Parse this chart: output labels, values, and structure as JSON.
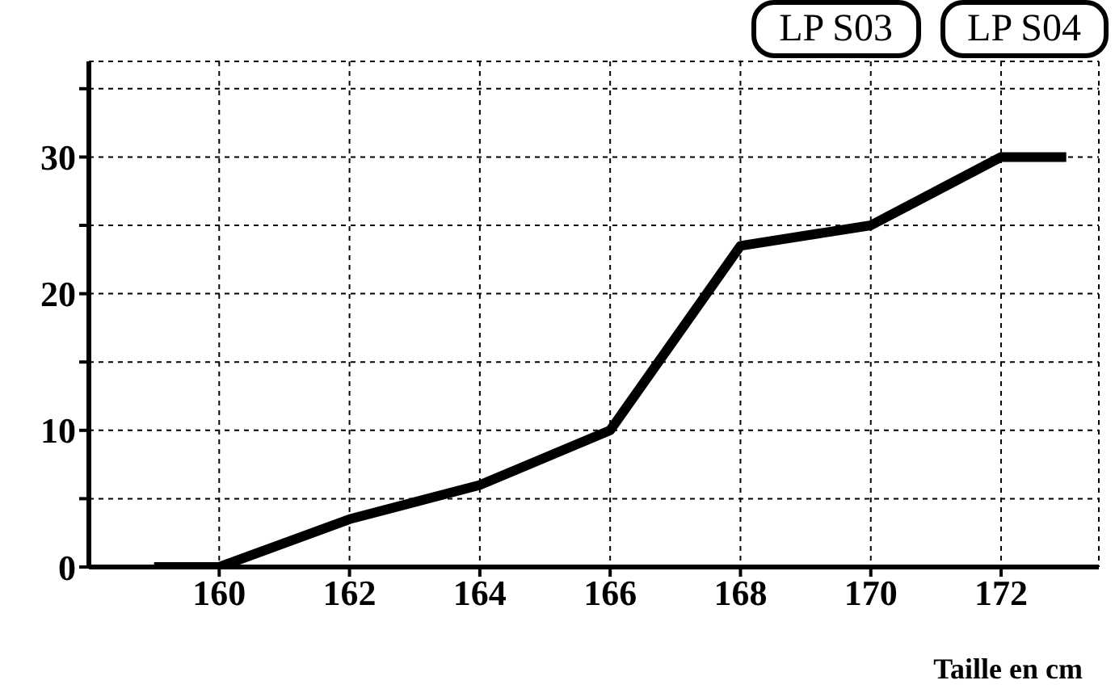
{
  "chart_data": {
    "type": "line",
    "xlabel": "Taille en cm",
    "x": [
      159,
      160,
      162,
      164,
      166,
      168,
      170,
      172,
      173
    ],
    "series": [
      {
        "color": "#000000",
        "values": [
          0,
          0,
          3.5,
          6,
          10,
          23.5,
          25,
          30,
          30
        ]
      }
    ],
    "xlim": [
      158,
      173.5
    ],
    "xticks": [
      160,
      162,
      164,
      166,
      168,
      170,
      172
    ],
    "ylim": [
      0,
      37
    ],
    "yticks": [
      0,
      {
        "value": 5,
        "label": null
      },
      10,
      {
        "value": 15,
        "label": null
      },
      20,
      {
        "value": 25,
        "label": null
      },
      30,
      {
        "value": 35,
        "label": null
      }
    ],
    "grid": true,
    "annotations": [
      "LP S03",
      "LP S04"
    ]
  }
}
